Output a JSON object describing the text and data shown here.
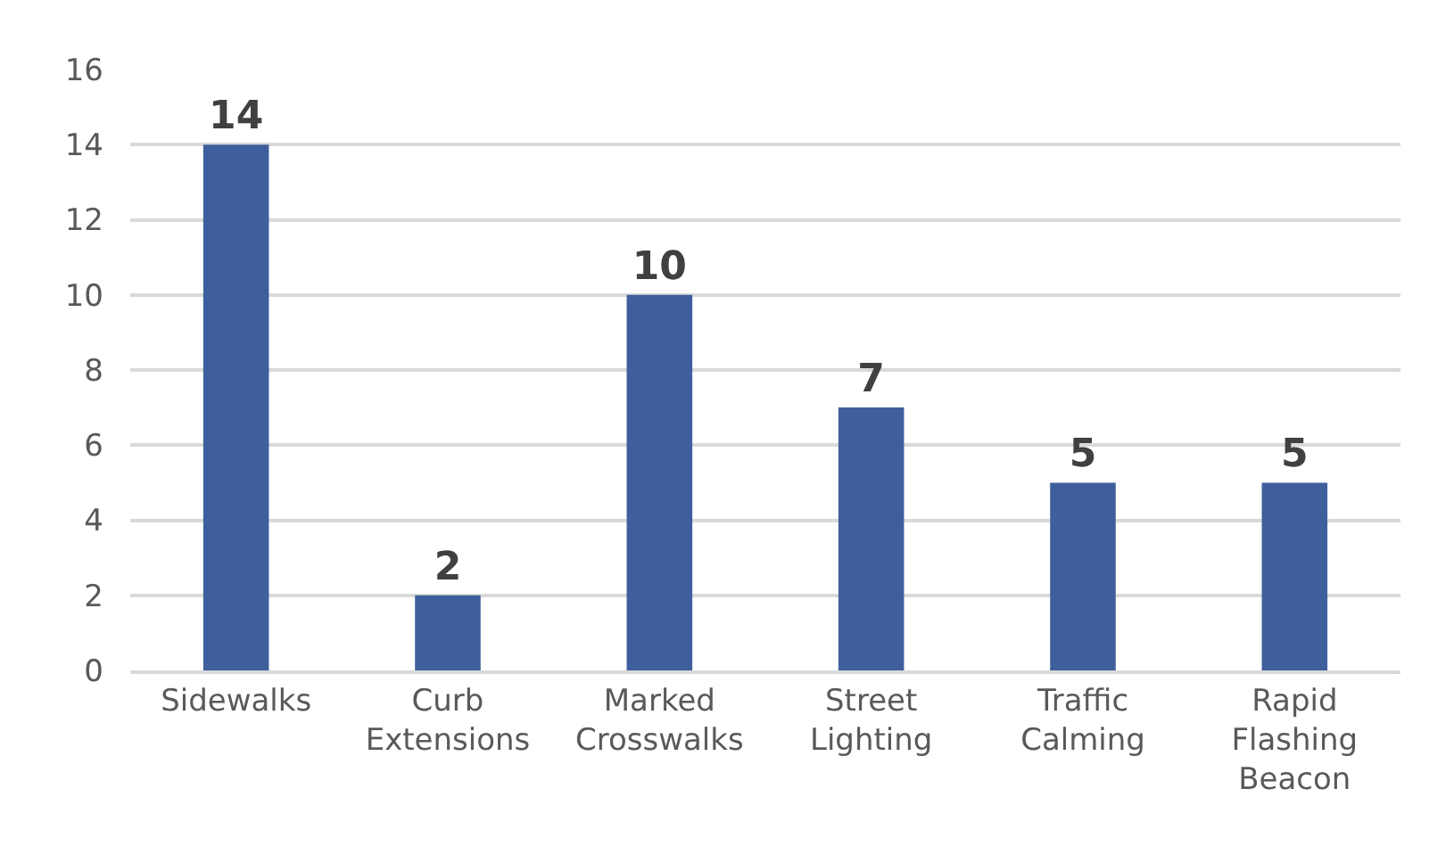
{
  "chart_data": {
    "type": "bar",
    "categories": [
      "Sidewalks",
      "Curb Extensions",
      "Marked Crosswalks",
      "Street Lighting",
      "Traffic Calming",
      "Rapid Flashing Beacon"
    ],
    "values": [
      14,
      2,
      10,
      7,
      5,
      5
    ],
    "color": "#3f5f9c",
    "ylim": [
      0,
      16
    ],
    "yticks": [
      0,
      2,
      4,
      6,
      8,
      10,
      12,
      14,
      16
    ],
    "grid": "y",
    "data_labels": true,
    "legend": false
  }
}
